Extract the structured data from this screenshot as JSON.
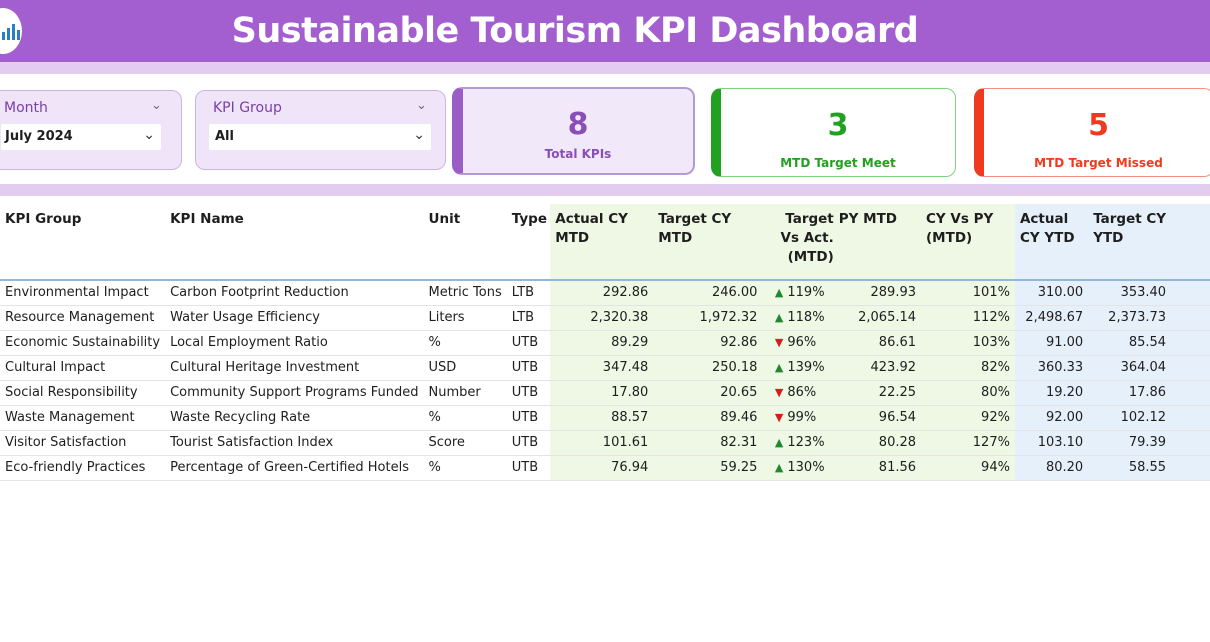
{
  "header": {
    "title": "Sustainable Tourism KPI Dashboard"
  },
  "filters": {
    "month": {
      "label": "Month",
      "value": "July 2024"
    },
    "kpi_group": {
      "label": "KPI Group",
      "value": "All"
    }
  },
  "cards": {
    "total": {
      "value": "8",
      "label": "Total KPIs",
      "color": "#8a4fb6"
    },
    "meet": {
      "value": "3",
      "label": "MTD Target Meet",
      "color": "#21a021"
    },
    "missed": {
      "value": "5",
      "label": "MTD Target Missed",
      "color": "#ee3a1f"
    }
  },
  "table": {
    "headers": {
      "group": "KPI Group",
      "name": "KPI Name",
      "unit": "Unit",
      "type": "Type",
      "actual_mtd": "Actual CY MTD",
      "target_mtd": "Target CY MTD",
      "tva": "Target Vs Act. (MTD)",
      "py_mtd": "PY MTD",
      "cy_vs_py": "CY Vs PY (MTD)",
      "actual_ytd": "Actual CY YTD",
      "target_ytd": "Target CY YTD"
    },
    "rows": [
      {
        "group": "Environmental Impact",
        "name": "Carbon Footprint Reduction",
        "unit": "Metric Tons",
        "type": "LTB",
        "actual_mtd": "292.86",
        "target_mtd": "246.00",
        "arrow": "▲",
        "dir": "up",
        "tva": "119%",
        "py_mtd": "289.93",
        "cy_vs_py": "101%",
        "actual_ytd": "310.00",
        "target_ytd": "353.40"
      },
      {
        "group": "Resource Management",
        "name": "Water Usage Efficiency",
        "unit": "Liters",
        "type": "LTB",
        "actual_mtd": "2,320.38",
        "target_mtd": "1,972.32",
        "arrow": "▲",
        "dir": "up",
        "tva": "118%",
        "py_mtd": "2,065.14",
        "cy_vs_py": "112%",
        "actual_ytd": "2,498.67",
        "target_ytd": "2,373.73"
      },
      {
        "group": "Economic Sustainability",
        "name": "Local Employment Ratio",
        "unit": "%",
        "type": "UTB",
        "actual_mtd": "89.29",
        "target_mtd": "92.86",
        "arrow": "▼",
        "dir": "down",
        "tva": "96%",
        "py_mtd": "86.61",
        "cy_vs_py": "103%",
        "actual_ytd": "91.00",
        "target_ytd": "85.54"
      },
      {
        "group": "Cultural Impact",
        "name": "Cultural Heritage Investment",
        "unit": "USD",
        "type": "UTB",
        "actual_mtd": "347.48",
        "target_mtd": "250.18",
        "arrow": "▲",
        "dir": "up",
        "tva": "139%",
        "py_mtd": "423.92",
        "cy_vs_py": "82%",
        "actual_ytd": "360.33",
        "target_ytd": "364.04"
      },
      {
        "group": "Social Responsibility",
        "name": "Community Support Programs Funded",
        "unit": "Number",
        "type": "UTB",
        "actual_mtd": "17.80",
        "target_mtd": "20.65",
        "arrow": "▼",
        "dir": "down",
        "tva": "86%",
        "py_mtd": "22.25",
        "cy_vs_py": "80%",
        "actual_ytd": "19.20",
        "target_ytd": "17.86"
      },
      {
        "group": "Waste Management",
        "name": "Waste Recycling Rate",
        "unit": "%",
        "type": "UTB",
        "actual_mtd": "88.57",
        "target_mtd": "89.46",
        "arrow": "▼",
        "dir": "down",
        "tva": "99%",
        "py_mtd": "96.54",
        "cy_vs_py": "92%",
        "actual_ytd": "92.00",
        "target_ytd": "102.12"
      },
      {
        "group": "Visitor Satisfaction",
        "name": "Tourist Satisfaction Index",
        "unit": "Score",
        "type": "UTB",
        "actual_mtd": "101.61",
        "target_mtd": "82.31",
        "arrow": "▲",
        "dir": "up",
        "tva": "123%",
        "py_mtd": "80.28",
        "cy_vs_py": "127%",
        "actual_ytd": "103.10",
        "target_ytd": "79.39"
      },
      {
        "group": "Eco-friendly Practices",
        "name": "Percentage of Green-Certified Hotels",
        "unit": "%",
        "type": "UTB",
        "actual_mtd": "76.94",
        "target_mtd": "59.25",
        "arrow": "▲",
        "dir": "up",
        "tva": "130%",
        "py_mtd": "81.56",
        "cy_vs_py": "94%",
        "actual_ytd": "80.20",
        "target_ytd": "58.55"
      }
    ]
  }
}
